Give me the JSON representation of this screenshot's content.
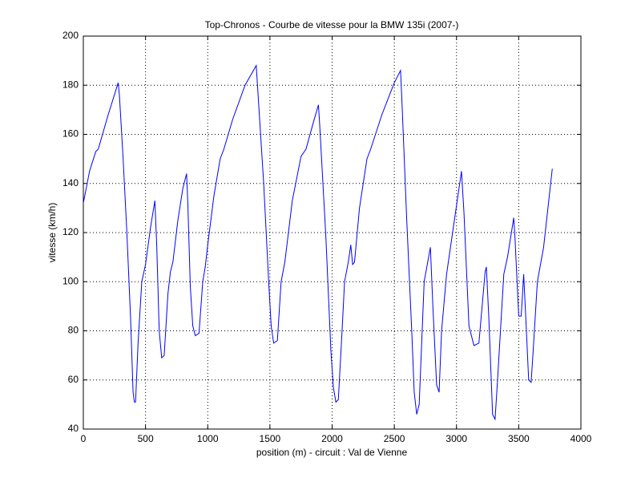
{
  "chart_data": {
    "type": "line",
    "title": "Top-Chronos - Courbe de vitesse pour la BMW 135i (2007-)",
    "x_label": "position (m) - circuit : Val de Vienne",
    "y_label": "vitesse (km/h)",
    "color": "#0000ff",
    "grid": true,
    "xlim": [
      0,
      4000
    ],
    "xticks": [
      0,
      500,
      1000,
      1500,
      2000,
      2500,
      3000,
      3500,
      4000
    ],
    "ylim": [
      40,
      200
    ],
    "yticks": [
      40,
      60,
      80,
      100,
      120,
      140,
      160,
      180,
      200
    ],
    "x": [
      0,
      50,
      100,
      120,
      200,
      280,
      290,
      320,
      350,
      380,
      400,
      410,
      420,
      440,
      470,
      500,
      540,
      575,
      590,
      610,
      630,
      650,
      680,
      700,
      720,
      760,
      800,
      830,
      840,
      860,
      880,
      900,
      930,
      960,
      980,
      1000,
      1050,
      1100,
      1130,
      1200,
      1300,
      1390,
      1400,
      1450,
      1490,
      1510,
      1530,
      1560,
      1590,
      1620,
      1680,
      1750,
      1790,
      1850,
      1890,
      1900,
      1950,
      1990,
      2010,
      2030,
      2050,
      2080,
      2100,
      2130,
      2150,
      2165,
      2180,
      2220,
      2280,
      2310,
      2400,
      2500,
      2550,
      2560,
      2600,
      2640,
      2660,
      2680,
      2700,
      2740,
      2790,
      2810,
      2840,
      2860,
      2880,
      2920,
      2980,
      3040,
      3060,
      3100,
      3140,
      3180,
      3230,
      3240,
      3260,
      3290,
      3310,
      3330,
      3380,
      3410,
      3460,
      3470,
      3500,
      3520,
      3540,
      3560,
      3580,
      3600,
      3620,
      3650,
      3700,
      3770
    ],
    "values": [
      132,
      145,
      153,
      154,
      168,
      181,
      176,
      150,
      120,
      85,
      55,
      51,
      51,
      75,
      100,
      107,
      122,
      133,
      115,
      80,
      69,
      70,
      95,
      104,
      108,
      125,
      138,
      144,
      132,
      98,
      82,
      78,
      79,
      100,
      106,
      115,
      135,
      150,
      154,
      166,
      180,
      188,
      180,
      140,
      100,
      82,
      75,
      76,
      100,
      108,
      133,
      151,
      154,
      165,
      172,
      164,
      118,
      72,
      57,
      51,
      52,
      80,
      100,
      108,
      115,
      107,
      108,
      130,
      150,
      154,
      168,
      181,
      186,
      175,
      125,
      80,
      55,
      46,
      50,
      100,
      114,
      90,
      58,
      55,
      80,
      103,
      124,
      145,
      128,
      82,
      74,
      75,
      104,
      106,
      85,
      46,
      44,
      60,
      103,
      110,
      126,
      118,
      86,
      86,
      103,
      82,
      60,
      59,
      75,
      100,
      114,
      146
    ]
  }
}
